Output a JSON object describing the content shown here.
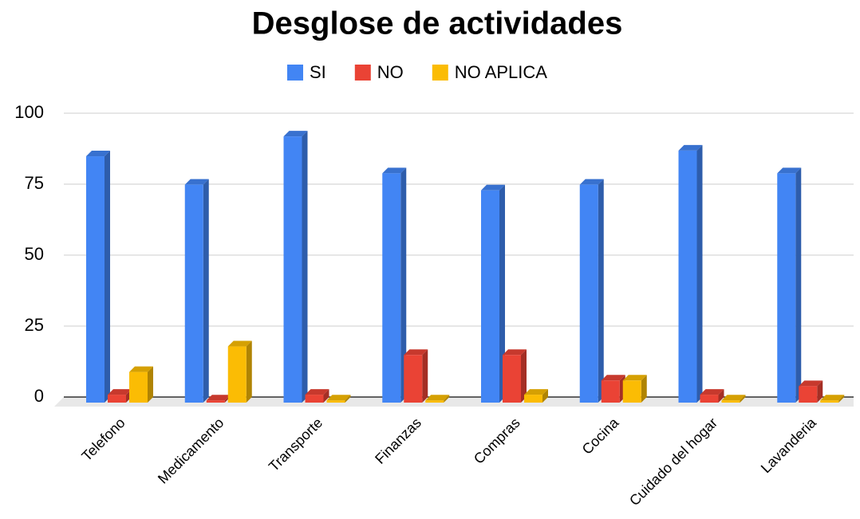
{
  "chart_data": {
    "type": "bar3d",
    "title": "Desglose de actividades",
    "categories": [
      "Telefono",
      "Medicamento",
      "Transporte",
      "Finanzas",
      "Compras",
      "Cocina",
      "Cuidado del hogar",
      "Lavanderia"
    ],
    "series": [
      {
        "name": "SI",
        "color": "#4285f4",
        "values": [
          86,
          76,
          93,
          80,
          74,
          76,
          88,
          80
        ]
      },
      {
        "name": "NO",
        "color": "#ea4335",
        "values": [
          2,
          0,
          2,
          16,
          16,
          7,
          2,
          5
        ]
      },
      {
        "name": "NO APLICA",
        "color": "#fbbc04",
        "values": [
          10,
          19,
          0,
          0,
          2,
          7,
          0,
          0
        ]
      }
    ],
    "ylim": [
      0,
      100
    ],
    "yticks": [
      0,
      25,
      50,
      75,
      100
    ],
    "grid": true,
    "legend": "top"
  }
}
